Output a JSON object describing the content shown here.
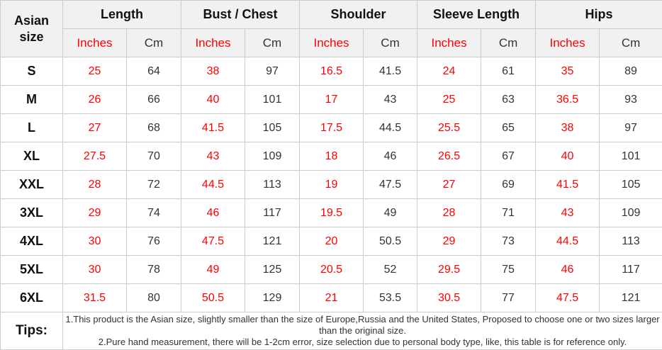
{
  "table": {
    "corner_header": "Asian size",
    "groups": [
      {
        "label": "Length"
      },
      {
        "label": "Bust / Chest"
      },
      {
        "label": "Shoulder"
      },
      {
        "label": "Sleeve Length"
      },
      {
        "label": "Hips"
      }
    ],
    "units": {
      "inches": "Inches",
      "cm": "Cm"
    },
    "rows": [
      {
        "size": "S",
        "values": [
          "25",
          "64",
          "38",
          "97",
          "16.5",
          "41.5",
          "24",
          "61",
          "35",
          "89"
        ]
      },
      {
        "size": "M",
        "values": [
          "26",
          "66",
          "40",
          "101",
          "17",
          "43",
          "25",
          "63",
          "36.5",
          "93"
        ]
      },
      {
        "size": "L",
        "values": [
          "27",
          "68",
          "41.5",
          "105",
          "17.5",
          "44.5",
          "25.5",
          "65",
          "38",
          "97"
        ]
      },
      {
        "size": "XL",
        "values": [
          "27.5",
          "70",
          "43",
          "109",
          "18",
          "46",
          "26.5",
          "67",
          "40",
          "101"
        ]
      },
      {
        "size": "XXL",
        "values": [
          "28",
          "72",
          "44.5",
          "113",
          "19",
          "47.5",
          "27",
          "69",
          "41.5",
          "105"
        ]
      },
      {
        "size": "3XL",
        "values": [
          "29",
          "74",
          "46",
          "117",
          "19.5",
          "49",
          "28",
          "71",
          "43",
          "109"
        ]
      },
      {
        "size": "4XL",
        "values": [
          "30",
          "76",
          "47.5",
          "121",
          "20",
          "50.5",
          "29",
          "73",
          "44.5",
          "113"
        ]
      },
      {
        "size": "5XL",
        "values": [
          "30",
          "78",
          "49",
          "125",
          "20.5",
          "52",
          "29.5",
          "75",
          "46",
          "117"
        ]
      },
      {
        "size": "6XL",
        "values": [
          "31.5",
          "80",
          "50.5",
          "129",
          "21",
          "53.5",
          "30.5",
          "77",
          "47.5",
          "121"
        ]
      }
    ],
    "tips": {
      "label": "Tips:",
      "line1": "1.This product is the Asian size, slightly smaller than the size of Europe,Russia and the United States, Proposed to choose one or two sizes larger than the original size.",
      "line2": "2.Pure hand measurement, there will be 1-2cm error, size selection due to personal body type, like, this table is for reference only."
    },
    "colors": {
      "accent_red": "#ff0000",
      "text_dark": "#333333",
      "header_background": "#f1f1f1",
      "border": "#cccccc"
    }
  }
}
